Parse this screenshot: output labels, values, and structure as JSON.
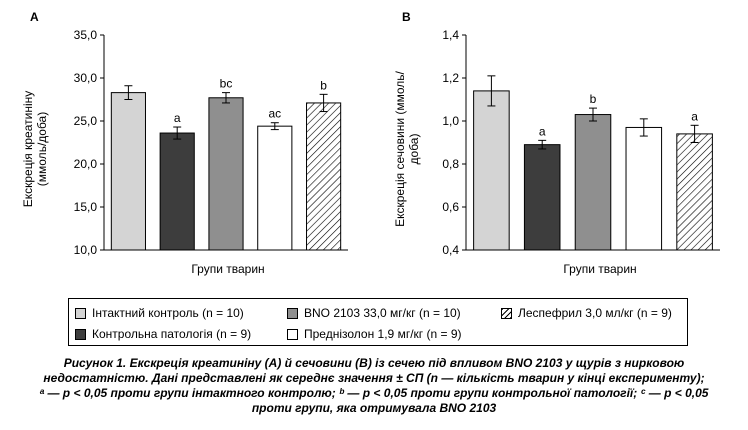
{
  "chart_data": [
    {
      "panel": "A",
      "type": "bar",
      "categories": [
        "Інтактний контроль (n = 10)",
        "Контрольна патологія (n = 9)",
        "BNO 2103 33,0 мг/кг (n = 10)",
        "Преднізолон 1,9 мг/кг (n = 9)",
        "Леспефрил 3,0 мл/кг (n = 9)"
      ],
      "values": [
        28.3,
        23.6,
        27.7,
        24.4,
        27.1
      ],
      "errors": [
        0.8,
        0.7,
        0.6,
        0.4,
        1.0
      ],
      "annotations": [
        "",
        "a",
        "bc",
        "ac",
        "b"
      ],
      "xlabel": "Групи тварин",
      "ylabel": "Екскреція креатиніну (ммоль/доба)",
      "ylim": [
        10.0,
        35.0
      ],
      "yticks": [
        "10,0",
        "15,0",
        "20,0",
        "25,0",
        "30,0",
        "35,0"
      ],
      "grid": false
    },
    {
      "panel": "B",
      "type": "bar",
      "categories": [
        "Інтактний контроль (n = 10)",
        "Контрольна патологія (n = 9)",
        "BNO 2103 33,0 мг/кг (n = 10)",
        "Преднізолон 1,9 мг/кг (n = 9)",
        "Леспефрил 3,0 мл/кг (n = 9)"
      ],
      "values": [
        1.14,
        0.89,
        1.03,
        0.97,
        0.94
      ],
      "errors": [
        0.07,
        0.02,
        0.03,
        0.04,
        0.04
      ],
      "annotations": [
        "",
        "a",
        "b",
        "",
        "a"
      ],
      "xlabel": "Групи тварин",
      "ylabel": "Екскреція сечовини (ммоль/доба)",
      "ylim": [
        0.4,
        1.4
      ],
      "yticks": [
        "0,4",
        "0,6",
        "0,8",
        "1,0",
        "1,2",
        "1,4"
      ],
      "grid": false
    }
  ],
  "legend": {
    "items": [
      {
        "label": "Інтактний контроль (n = 10)",
        "fill": "#d4d4d4",
        "pattern": "solid"
      },
      {
        "label": "BNO 2103 33,0 мг/кг (n = 10)",
        "fill": "#8f8f8f",
        "pattern": "solid"
      },
      {
        "label": "Леспефрил 3,0 мл/кг (n = 9)",
        "fill": "#ffffff",
        "pattern": "hatch"
      },
      {
        "label": "Контрольна патологія (n = 9)",
        "fill": "#3d3d3d",
        "pattern": "solid"
      },
      {
        "label": "Преднізолон 1,9 мг/кг (n = 9)",
        "fill": "#ffffff",
        "pattern": "solid"
      }
    ]
  },
  "colors": {
    "intact": "#d4d4d4",
    "pathology": "#3d3d3d",
    "bno": "#8f8f8f",
    "prednisolone": "#ffffff",
    "lespefril": "#ffffff"
  },
  "caption": {
    "line1": "Рисунок 1. Екскреція креатиніну (А) й сечовини (В) із сечею під впливом BNO 2103 у щурів з нирковою",
    "line2": "недостатністю. Дані представлені як середнє значення ± СП (n — кількість тварин у кінці експерименту);",
    "line3": "ᵃ — р < 0,05 проти групи інтактного контролю; ᵇ — р < 0,05 проти групи контрольної патології; ᶜ — р < 0,05",
    "line4": "проти групи, яка отримувала BNO 2103"
  }
}
